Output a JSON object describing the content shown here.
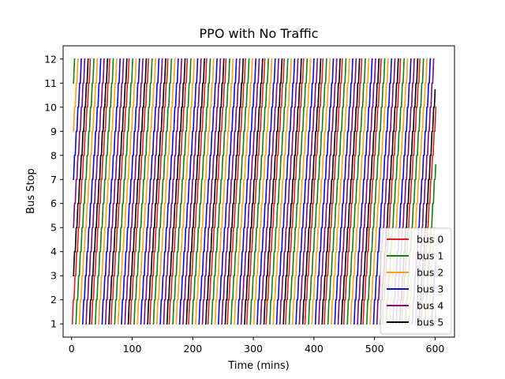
{
  "chart_data": {
    "type": "line",
    "title": "PPO with No Traffic",
    "xlabel": "Time (mins)",
    "ylabel": "Bus Stop",
    "xlim": [
      -14,
      632
    ],
    "ylim": [
      0.45,
      12.55
    ],
    "xticks": [
      0,
      100,
      200,
      300,
      400,
      500,
      600
    ],
    "yticks": [
      1,
      2,
      3,
      4,
      5,
      6,
      7,
      8,
      9,
      10,
      11,
      12
    ],
    "grid": false,
    "legend_position": "lower-right",
    "pattern": {
      "route_start_stop": 1,
      "route_end_stop": 12,
      "stop_travel_mins": 1.6,
      "dwell_mins": 1.2,
      "round_trip_mins": 30
    },
    "series": [
      {
        "name": "bus 0",
        "color": "#d62020",
        "start_stop": 1,
        "start_time": 0,
        "end_time": 602
      },
      {
        "name": "bus 1",
        "color": "#108010",
        "start_stop": 11,
        "start_time": 2,
        "end_time": 601
      },
      {
        "name": "bus 2",
        "color": "#ffa010",
        "start_stop": 9,
        "start_time": 2,
        "end_time": 600
      },
      {
        "name": "bus 3",
        "color": "#0a0acc",
        "start_stop": 7,
        "start_time": 2,
        "end_time": 601
      },
      {
        "name": "bus 4",
        "color": "#7d087d",
        "start_stop": 5,
        "start_time": 2,
        "end_time": 601
      },
      {
        "name": "bus 5",
        "color": "#000000",
        "start_stop": 3,
        "start_time": 2,
        "end_time": 600
      }
    ]
  }
}
